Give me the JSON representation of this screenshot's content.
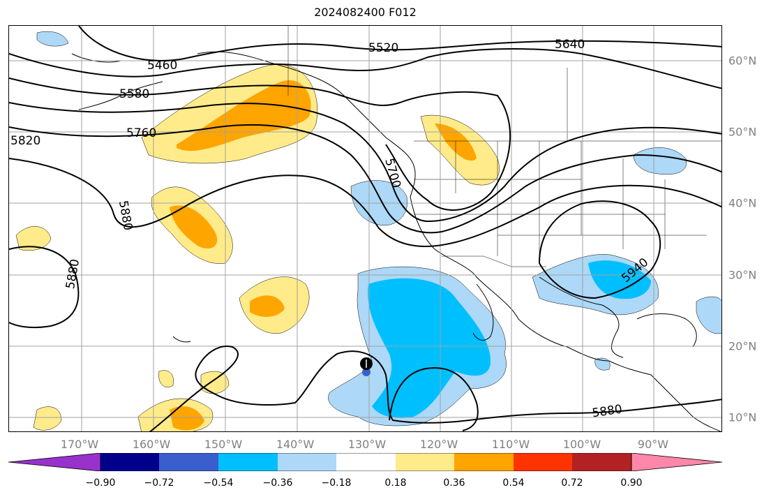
{
  "title": "2024082400 F012",
  "lat_labels": [
    "60°N",
    "50°N",
    "40°N",
    "30°N",
    "20°N",
    "10°N"
  ],
  "lon_labels": [
    "170°W",
    "160°W",
    "150°W",
    "140°W",
    "130°W",
    "120°W",
    "110°W",
    "100°W",
    "90°W"
  ],
  "contour_labels": [
    "5460",
    "5520",
    "5640",
    "5580",
    "5760",
    "5820",
    "5700",
    "5880",
    "5880",
    "5940",
    "5880"
  ],
  "colorbar": {
    "ticks": [
      "−0.90",
      "−0.72",
      "−0.54",
      "−0.36",
      "−0.18",
      "0.18",
      "0.36",
      "0.54",
      "0.72",
      "0.90"
    ],
    "colors": [
      "#9932cc",
      "#00008b",
      "#3a5fcd",
      "#00bfff",
      "#add8f7",
      "#ffffff",
      "#ffeb8a",
      "#ffa500",
      "#ff3300",
      "#b22222",
      "#ff88aa"
    ]
  },
  "storm_marker": {
    "lat": 17.5,
    "lon": -130
  }
}
